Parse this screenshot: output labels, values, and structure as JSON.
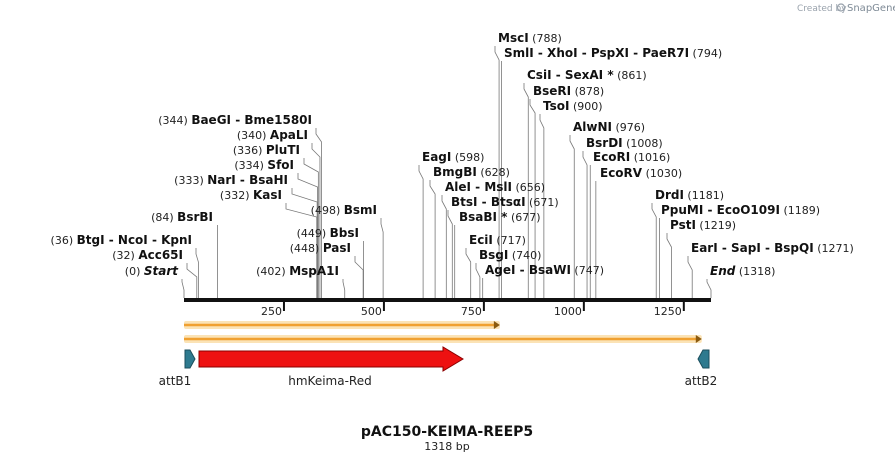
{
  "brand": {
    "prefix": "Created by",
    "name": "SnapGene"
  },
  "map": {
    "name": "pAC150-KEIMA-REEP5",
    "length_label": "1318 bp",
    "length": 1318,
    "ticks": [
      "250",
      "500",
      "750",
      "1000",
      "1250"
    ],
    "tick_values": [
      250,
      500,
      750,
      1000,
      1250
    ]
  },
  "sites": [
    {
      "label": "Start",
      "pos": "(0)",
      "val": 0,
      "italic": true,
      "side": "left"
    },
    {
      "label": "Acc65I",
      "pos": "(32)",
      "val": 32,
      "side": "left"
    },
    {
      "label": "BtgI  - NcoI  - KpnI",
      "pos": "(36)",
      "val": 36,
      "side": "left"
    },
    {
      "label": "BsrBI",
      "pos": "(84)",
      "val": 84,
      "side": "left"
    },
    {
      "label": "KasI",
      "pos": "(332)",
      "val": 332,
      "side": "left"
    },
    {
      "label": "NarI  - BsaHI",
      "pos": "(333)",
      "val": 333,
      "side": "left"
    },
    {
      "label": "SfoI",
      "pos": "(334)",
      "val": 334,
      "side": "left"
    },
    {
      "label": "PluTI",
      "pos": "(336)",
      "val": 336,
      "side": "left"
    },
    {
      "label": "ApaLI",
      "pos": "(340)",
      "val": 340,
      "side": "left"
    },
    {
      "label": "BaeGI  - Bme1580I",
      "pos": "(344)",
      "val": 344,
      "side": "left"
    },
    {
      "label": "MspA1I",
      "pos": "(402)",
      "val": 402,
      "side": "left"
    },
    {
      "label": "PasI",
      "pos": "(448)",
      "val": 448,
      "side": "left"
    },
    {
      "label": "BbsI",
      "pos": "(449)",
      "val": 449,
      "side": "left"
    },
    {
      "label": "BsmI",
      "pos": "(498)",
      "val": 498,
      "side": "left"
    },
    {
      "label": "EagI",
      "pos": "(598)",
      "val": 598,
      "side": "right"
    },
    {
      "label": "BmgBI",
      "pos": "(628)",
      "val": 628,
      "side": "right"
    },
    {
      "label": "AleI  - MslI",
      "pos": "(656)",
      "val": 656,
      "side": "right"
    },
    {
      "label": "BtsI  - BtsαI",
      "pos": "(671)",
      "val": 671,
      "side": "right"
    },
    {
      "label": "BsaBI *",
      "pos": "(677)",
      "val": 677,
      "side": "right"
    },
    {
      "label": "EciI",
      "pos": "(717)",
      "val": 717,
      "side": "right"
    },
    {
      "label": "BsgI",
      "pos": "(740)",
      "val": 740,
      "side": "right"
    },
    {
      "label": "AgeI  - BsaWI",
      "pos": "(747)",
      "val": 747,
      "side": "right"
    },
    {
      "label": "MscI",
      "pos": "(788)",
      "val": 788,
      "side": "right"
    },
    {
      "label": "SmlI  - XhoI  - PspXI  - PaeR7I",
      "pos": "(794)",
      "val": 794,
      "side": "right"
    },
    {
      "label": "CsiI  - SexAI *",
      "pos": "(861)",
      "val": 861,
      "side": "right"
    },
    {
      "label": "BseRI",
      "pos": "(878)",
      "val": 878,
      "side": "right"
    },
    {
      "label": "TsoI",
      "pos": "(900)",
      "val": 900,
      "side": "right"
    },
    {
      "label": "AlwNI",
      "pos": "(976)",
      "val": 976,
      "side": "right"
    },
    {
      "label": "BsrDI",
      "pos": "(1008)",
      "val": 1008,
      "side": "right"
    },
    {
      "label": "EcoRI",
      "pos": "(1016)",
      "val": 1016,
      "side": "right"
    },
    {
      "label": "EcoRV",
      "pos": "(1030)",
      "val": 1030,
      "side": "right"
    },
    {
      "label": "DrdI",
      "pos": "(1181)",
      "val": 1181,
      "side": "right"
    },
    {
      "label": "PpuMI  - EcoO109I",
      "pos": "(1189)",
      "val": 1189,
      "side": "right"
    },
    {
      "label": "PstI",
      "pos": "(1219)",
      "val": 1219,
      "side": "right"
    },
    {
      "label": "EarI  - SapI  - BspQI",
      "pos": "(1271)",
      "val": 1271,
      "side": "right"
    },
    {
      "label": "End",
      "pos": "(1318)",
      "val": 1318,
      "italic": true,
      "side": "right"
    }
  ],
  "features": [
    {
      "name": "attB1",
      "start": 0,
      "end": 25,
      "color": "#2e7a8f"
    },
    {
      "name": "hmKeima-Red",
      "start": 36,
      "end": 708,
      "color": "#ee1111"
    },
    {
      "name": "attB2",
      "start": 1293,
      "end": 1318,
      "color": "#2e7a8f"
    }
  ],
  "orfs": [
    {
      "start": 0,
      "end": 790,
      "color": "#f0a030"
    },
    {
      "start": 0,
      "end": 1295,
      "color": "#f0a030"
    }
  ]
}
